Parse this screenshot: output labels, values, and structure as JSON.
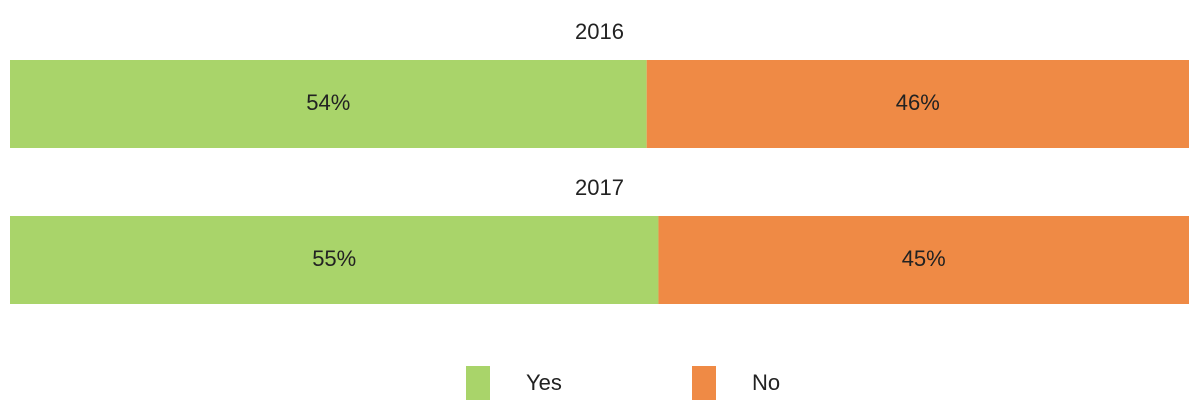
{
  "chart_data": {
    "type": "bar",
    "stacked": true,
    "orientation": "horizontal",
    "categories": [
      "2016",
      "2017"
    ],
    "series": [
      {
        "name": "Yes",
        "color": "#a9d46a",
        "values": [
          54,
          55
        ],
        "value_labels": [
          "54%",
          "55%"
        ]
      },
      {
        "name": "No",
        "color": "#ef8a45",
        "values": [
          46,
          45
        ],
        "value_labels": [
          "46%",
          "45%"
        ]
      }
    ],
    "legend": "bottom"
  }
}
